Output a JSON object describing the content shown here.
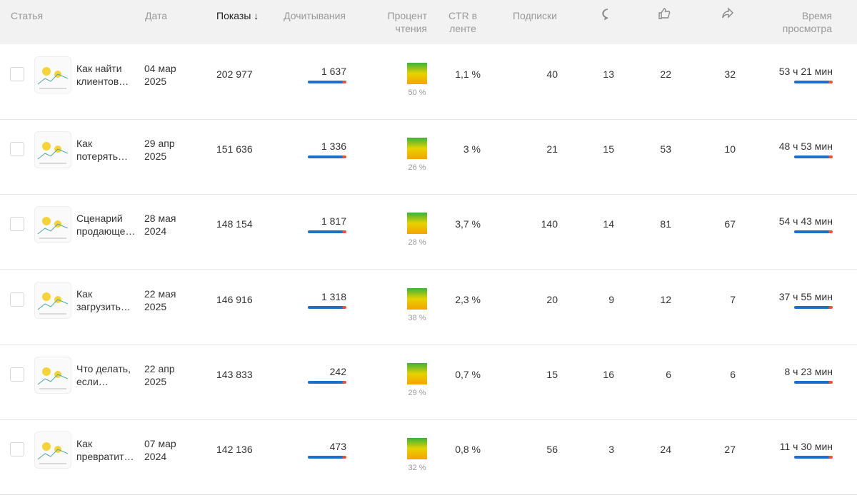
{
  "header": {
    "columns": [
      "Статья",
      "Дата",
      "Показы",
      "Дочитывания",
      "Процент чтения",
      "CTR в ленте",
      "Подписки",
      "Время просмотра"
    ]
  },
  "rows": [
    {
      "title": "Как найти клиентов…",
      "date": "04 мар 2025",
      "views": "202 977",
      "reads": "1 637",
      "read_percent": "50 %",
      "ctr": "1,1 %",
      "subscriptions": 40,
      "comments": 13,
      "likes": 22,
      "shares": 32,
      "watch_time": "53 ч 21 мин"
    },
    {
      "title": "Как потерять…",
      "date": "29 апр 2025",
      "views": "151 636",
      "reads": "1 336",
      "read_percent": "26 %",
      "ctr": "3 %",
      "subscriptions": 21,
      "comments": 15,
      "likes": 53,
      "shares": 10,
      "watch_time": "48 ч 53 мин"
    },
    {
      "title": "Сценарий продающе…",
      "date": "28 мая 2024",
      "views": "148 154",
      "reads": "1 817",
      "read_percent": "28 %",
      "ctr": "3,7 %",
      "subscriptions": 140,
      "comments": 14,
      "likes": 81,
      "shares": 67,
      "watch_time": "54 ч 43 мин"
    },
    {
      "title": "Как загрузить…",
      "date": "22 мая 2025",
      "views": "146 916",
      "reads": "1 318",
      "read_percent": "38 %",
      "ctr": "2,3 %",
      "subscriptions": 20,
      "comments": 9,
      "likes": 12,
      "shares": 7,
      "watch_time": "37 ч 55 мин"
    },
    {
      "title": "Что делать, если…",
      "date": "22 апр 2025",
      "views": "143 833",
      "reads": "242",
      "read_percent": "29 %",
      "ctr": "0,7 %",
      "subscriptions": 15,
      "comments": 16,
      "likes": 6,
      "shares": 6,
      "watch_time": "8 ч 23 мин"
    },
    {
      "title": "Как превратит…",
      "date": "07 мар 2024",
      "views": "142 136",
      "reads": "473",
      "read_percent": "32 %",
      "ctr": "0,8 %",
      "subscriptions": 56,
      "comments": 3,
      "likes": 24,
      "shares": 27,
      "watch_time": "11 ч 30 мин"
    }
  ]
}
